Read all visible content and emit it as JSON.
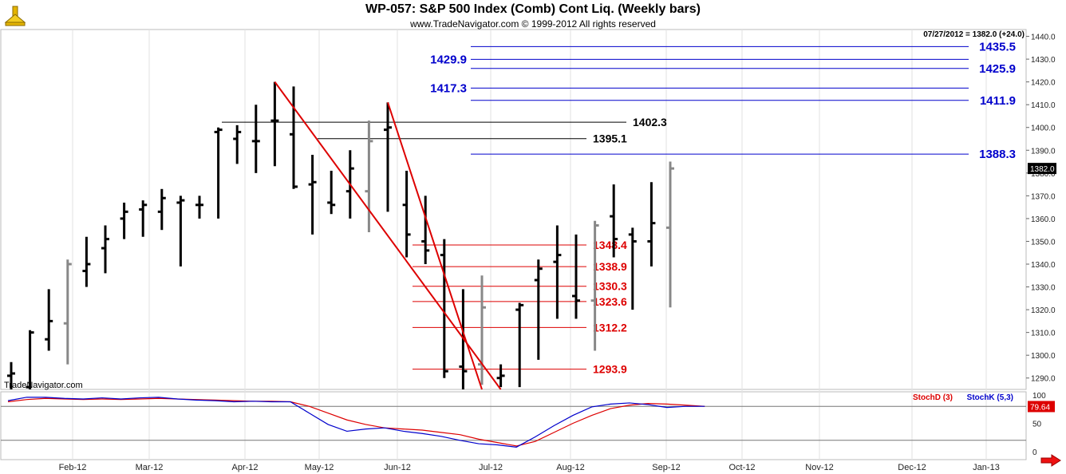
{
  "header": {
    "title": "WP-057:  S&P 500 Index (Comb) Cont Liq.  (Weekly bars)",
    "subtitle": "www.TradeNavigator.com © 1999-2012 All rights reserved",
    "watermark": "TradeNavigator.com",
    "last_quote": "07/27/2012 = 1382.0 (+24.0)",
    "last_price_tag": "1382.0"
  },
  "colors": {
    "blue_level": "#0000cc",
    "black_level": "#000000",
    "red_level": "#dd0000",
    "trendline": "#dd0000",
    "stochD": "#dd0000",
    "stochK": "#0000cc",
    "bar_up": "#000000",
    "bar_alt": "#888888"
  },
  "chart_data": [
    {
      "type": "bar",
      "subtype": "ohlc-weekly",
      "title": "WP-057:  S&P 500 Index (Comb) Cont Liq.  (Weekly bars)",
      "x_ticks": [
        "Feb-12",
        "Mar-12",
        "Apr-12",
        "May-12",
        "Jun-12",
        "Jul-12",
        "Aug-12",
        "Sep-12",
        "Oct-12",
        "Nov-12",
        "Dec-12",
        "Jan-13"
      ],
      "y_ticks": [
        "1290.0",
        "1300.0",
        "1310.0",
        "1320.0",
        "1330.0",
        "1340.0",
        "1350.0",
        "1360.0",
        "1370.0",
        "1380.0",
        "1390.0",
        "1400.0",
        "1410.0",
        "1420.0",
        "1430.0",
        "1440.0"
      ],
      "ylim": [
        1285,
        1443
      ],
      "bars": [
        {
          "o": 1291,
          "h": 1297,
          "l": 1285,
          "c": 1292,
          "g": 0
        },
        {
          "o": 1286,
          "h": 1311,
          "l": 1285,
          "c": 1310,
          "g": 0
        },
        {
          "o": 1307,
          "h": 1329,
          "l": 1302,
          "c": 1315,
          "g": 0
        },
        {
          "o": 1314,
          "h": 1342,
          "l": 1296,
          "c": 1340,
          "g": 1
        },
        {
          "o": 1337,
          "h": 1352,
          "l": 1330,
          "c": 1340,
          "g": 0
        },
        {
          "o": 1347,
          "h": 1357,
          "l": 1336,
          "c": 1351,
          "g": 0
        },
        {
          "o": 1360,
          "h": 1367,
          "l": 1351,
          "c": 1363,
          "g": 0
        },
        {
          "o": 1364,
          "h": 1368,
          "l": 1352,
          "c": 1366,
          "g": 0
        },
        {
          "o": 1363,
          "h": 1373,
          "l": 1355,
          "c": 1369,
          "g": 0
        },
        {
          "o": 1367,
          "h": 1370,
          "l": 1339,
          "c": 1368,
          "g": 0
        },
        {
          "o": 1366,
          "h": 1370,
          "l": 1360,
          "c": 1366,
          "g": 0
        },
        {
          "o": 1398,
          "h": 1400,
          "l": 1360,
          "c": 1399,
          "g": 0
        },
        {
          "o": 1395,
          "h": 1401,
          "l": 1384,
          "c": 1398,
          "g": 0
        },
        {
          "o": 1394,
          "h": 1410,
          "l": 1380,
          "c": 1394,
          "g": 0
        },
        {
          "o": 1403,
          "h": 1420,
          "l": 1383,
          "c": 1403,
          "g": 0
        },
        {
          "o": 1397,
          "h": 1418,
          "l": 1373,
          "c": 1374,
          "g": 0
        },
        {
          "o": 1375,
          "h": 1388,
          "l": 1353,
          "c": 1376,
          "g": 0
        },
        {
          "o": 1367,
          "h": 1381,
          "l": 1362,
          "c": 1366,
          "g": 0
        },
        {
          "o": 1372,
          "h": 1390,
          "l": 1360,
          "c": 1382,
          "g": 0
        },
        {
          "o": 1372,
          "h": 1403,
          "l": 1354,
          "c": 1394,
          "g": 1
        },
        {
          "o": 1399,
          "h": 1411,
          "l": 1363,
          "c": 1400,
          "g": 0
        },
        {
          "o": 1366,
          "h": 1381,
          "l": 1343,
          "c": 1353,
          "g": 0
        },
        {
          "o": 1350,
          "h": 1370,
          "l": 1340,
          "c": 1346,
          "g": 0
        },
        {
          "o": 1344,
          "h": 1351,
          "l": 1290,
          "c": 1293,
          "g": 0
        },
        {
          "o": 1295,
          "h": 1329,
          "l": 1285,
          "c": 1293,
          "g": 0
        },
        {
          "o": 1296,
          "h": 1335,
          "l": 1287,
          "c": 1321,
          "g": 1
        },
        {
          "o": 1290,
          "h": 1296,
          "l": 1286,
          "c": 1291,
          "g": 0
        },
        {
          "o": 1320,
          "h": 1323,
          "l": 1286,
          "c": 1322,
          "g": 0
        },
        {
          "o": 1333,
          "h": 1342,
          "l": 1298,
          "c": 1338,
          "g": 0
        },
        {
          "o": 1341,
          "h": 1357,
          "l": 1316,
          "c": 1344,
          "g": 0
        },
        {
          "o": 1326,
          "h": 1353,
          "l": 1316,
          "c": 1324,
          "g": 0
        },
        {
          "o": 1324,
          "h": 1359,
          "l": 1302,
          "c": 1357,
          "g": 1
        },
        {
          "o": 1361,
          "h": 1375,
          "l": 1343,
          "c": 1351,
          "g": 0
        },
        {
          "o": 1353,
          "h": 1356,
          "l": 1320,
          "c": 1350,
          "g": 0
        },
        {
          "o": 1350,
          "h": 1376,
          "l": 1339,
          "c": 1358,
          "g": 0
        },
        {
          "o": 1356,
          "h": 1385,
          "l": 1321,
          "c": 1382,
          "g": 1
        }
      ],
      "levels": [
        {
          "price": 1435.5,
          "label": "1435.5",
          "color": "blue",
          "side": "right"
        },
        {
          "price": 1429.9,
          "label": "1429.9",
          "color": "blue",
          "side": "left"
        },
        {
          "price": 1425.9,
          "label": "1425.9",
          "color": "blue",
          "side": "right"
        },
        {
          "price": 1417.3,
          "label": "1417.3",
          "color": "blue",
          "side": "left"
        },
        {
          "price": 1411.9,
          "label": "1411.9",
          "color": "blue",
          "side": "right"
        },
        {
          "price": 1402.3,
          "label": "1402.3",
          "color": "black",
          "side": "right"
        },
        {
          "price": 1395.1,
          "label": "1395.1",
          "color": "black",
          "side": "right"
        },
        {
          "price": 1388.3,
          "label": "1388.3",
          "color": "blue",
          "side": "right"
        },
        {
          "price": 1348.4,
          "label": "1348.4",
          "color": "red",
          "side": "right"
        },
        {
          "price": 1338.9,
          "label": "1338.9",
          "color": "red",
          "side": "right"
        },
        {
          "price": 1330.3,
          "label": "1330.3",
          "color": "red",
          "side": "right"
        },
        {
          "price": 1323.6,
          "label": "1323.6",
          "color": "red",
          "side": "right"
        },
        {
          "price": 1312.2,
          "label": "1312.2",
          "color": "red",
          "side": "right"
        },
        {
          "price": 1293.9,
          "label": "1293.9",
          "color": "red",
          "side": "right"
        }
      ],
      "trendlines": [
        {
          "from": {
            "bar": 14,
            "price": 1420
          },
          "to": {
            "bar": 26,
            "price": 1285
          }
        },
        {
          "from": {
            "bar": 20,
            "price": 1411
          },
          "to": {
            "bar": 25,
            "price": 1285
          }
        }
      ]
    },
    {
      "type": "line",
      "subtype": "stochastic",
      "legend": [
        "StochD (3)",
        "StochK (5,3)"
      ],
      "y_ticks": [
        "100",
        "50",
        "0"
      ],
      "ylim": [
        0,
        100
      ],
      "last_value": "79.64",
      "reference_levels": [
        80,
        20
      ],
      "series": [
        {
          "name": "StochD (3)",
          "values": [
            88,
            92,
            94,
            93,
            92,
            93,
            92,
            93,
            94,
            93,
            92,
            91,
            90,
            89,
            89,
            88,
            80,
            68,
            56,
            48,
            42,
            40,
            38,
            34,
            30,
            22,
            16,
            10,
            18,
            34,
            50,
            64,
            76,
            82,
            85,
            84,
            82,
            80
          ]
        },
        {
          "name": "StochK (5,3)",
          "values": [
            90,
            96,
            96,
            94,
            93,
            95,
            93,
            95,
            96,
            93,
            91,
            90,
            88,
            89,
            88,
            88,
            68,
            48,
            36,
            40,
            42,
            36,
            32,
            27,
            20,
            14,
            12,
            8,
            26,
            46,
            64,
            79,
            84,
            86,
            83,
            78,
            80,
            80
          ]
        }
      ]
    }
  ]
}
